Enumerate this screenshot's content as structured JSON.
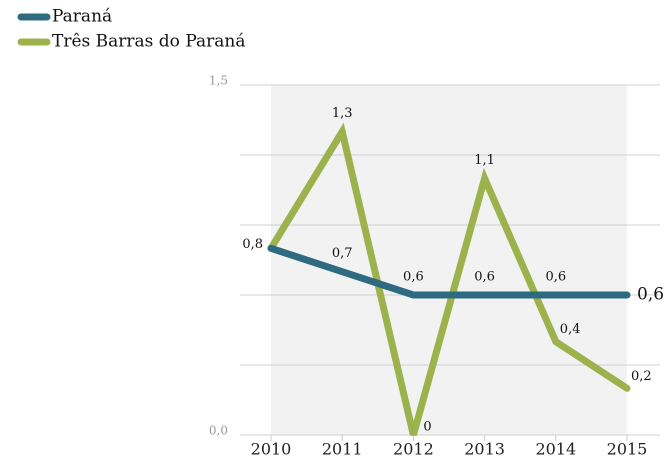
{
  "chart_data": {
    "type": "line",
    "categories": [
      "2010",
      "2011",
      "2012",
      "2013",
      "2014",
      "2015"
    ],
    "series": [
      {
        "name": "Paraná",
        "color": "#2e6a80",
        "values": [
          0.8,
          0.7,
          0.6,
          0.6,
          0.6,
          0.6
        ],
        "value_labels": [
          "0,8",
          "0,7",
          "0,6",
          "0,6",
          "0,6",
          "0,6"
        ]
      },
      {
        "name": "Três Barras do Paraná",
        "color": "#9db24c",
        "values": [
          0.8,
          1.3,
          0,
          1.1,
          0.4,
          0.2
        ],
        "value_labels": [
          null,
          "1,3",
          "0",
          "1,1",
          "0,4",
          "0,2"
        ]
      }
    ],
    "ylim": [
      0,
      1.5
    ],
    "yticks": [
      {
        "value": 0,
        "label": "0,0"
      },
      {
        "value": 1.5,
        "label": "1,5"
      }
    ],
    "minor_yticks": [
      0.3,
      0.6,
      0.9,
      1.2
    ],
    "grid": true,
    "legend": "top-left"
  }
}
